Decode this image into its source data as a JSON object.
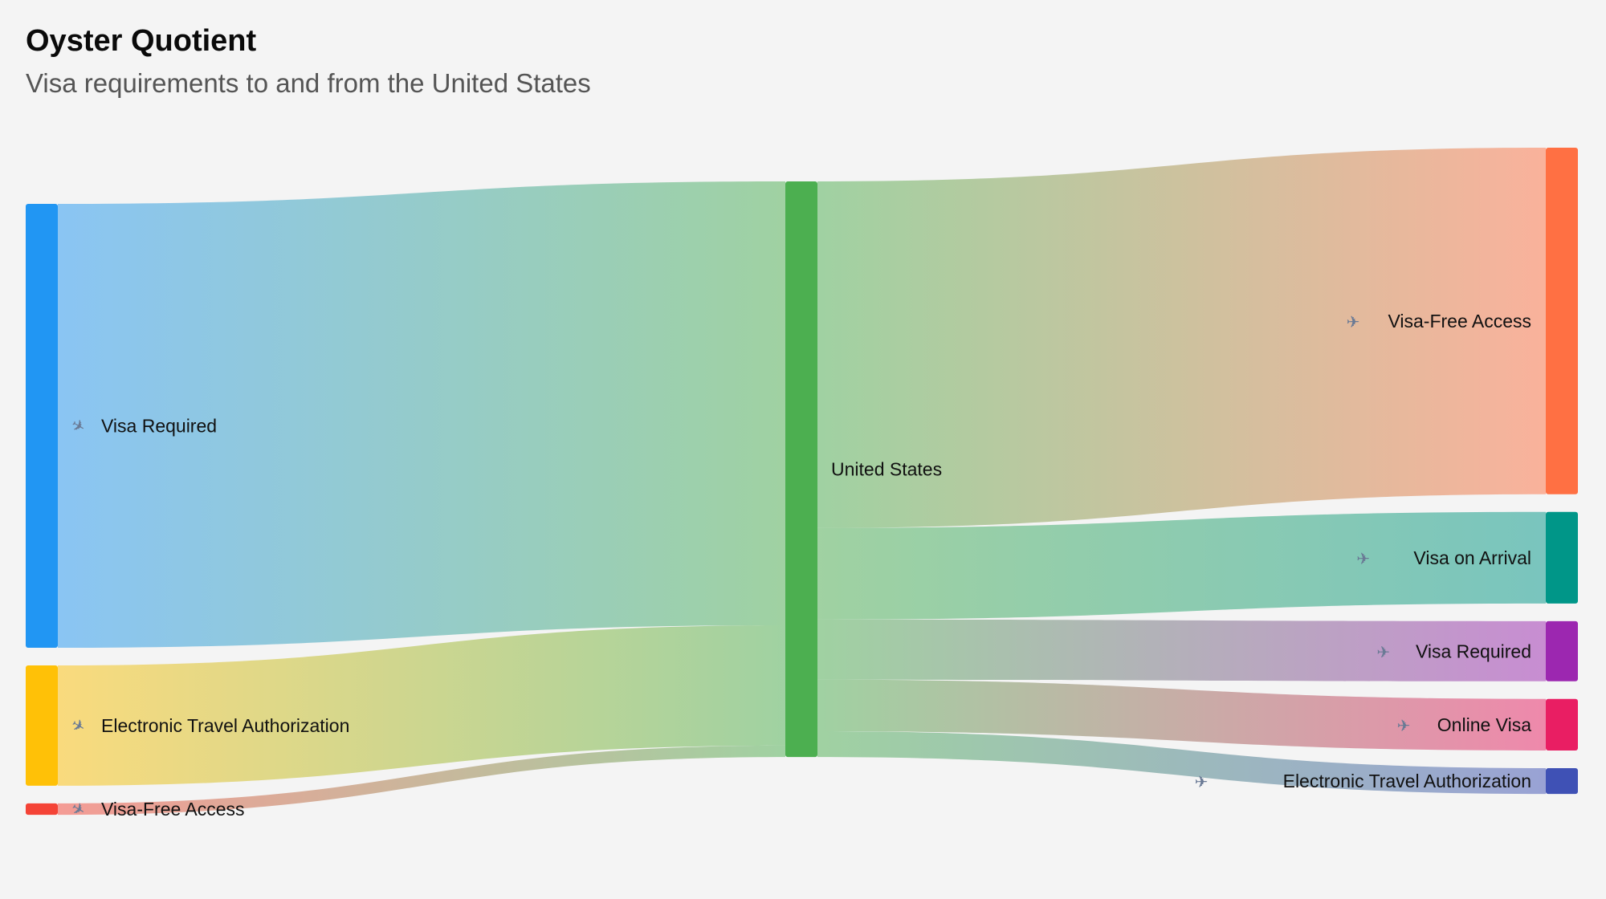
{
  "header": {
    "title": "Oyster Quotient",
    "subtitle": "Visa requirements to and from the United States"
  },
  "chart_data": {
    "type": "sankey",
    "nodes": [
      {
        "id": "in_visa_required",
        "label": "Visa Required",
        "icon": "airplane-arrival-icon",
        "color": "#2196F3",
        "column": "left"
      },
      {
        "id": "in_eta",
        "label": "Electronic Travel Authorization",
        "icon": "airplane-arrival-icon",
        "color": "#FFC107",
        "column": "left"
      },
      {
        "id": "in_visa_free",
        "label": "Visa-Free Access",
        "icon": "airplane-arrival-icon",
        "color": "#F44336",
        "column": "left"
      },
      {
        "id": "united_states",
        "label": "United States",
        "icon": "",
        "color": "#4CAF50",
        "column": "middle"
      },
      {
        "id": "out_visa_free",
        "label": "Visa-Free Access",
        "icon": "airplane-departure-icon",
        "color": "#FF7043",
        "column": "right"
      },
      {
        "id": "out_visa_on_arrival",
        "label": "Visa on Arrival",
        "icon": "airplane-departure-icon",
        "color": "#009688",
        "column": "right"
      },
      {
        "id": "out_visa_required",
        "label": "Visa Required",
        "icon": "airplane-departure-icon",
        "color": "#9C27B0",
        "column": "right"
      },
      {
        "id": "out_online_visa",
        "label": "Online Visa",
        "icon": "airplane-departure-icon",
        "color": "#E91E63",
        "column": "right"
      },
      {
        "id": "out_eta",
        "label": "Electronic Travel Authorization",
        "icon": "airplane-departure-icon",
        "color": "#3F51B5",
        "column": "right"
      }
    ],
    "links": [
      {
        "source": "in_visa_required",
        "target": "united_states",
        "value": 155
      },
      {
        "source": "in_eta",
        "target": "united_states",
        "value": 42
      },
      {
        "source": "in_visa_free",
        "target": "united_states",
        "value": 4
      },
      {
        "source": "united_states",
        "target": "out_visa_free",
        "value": 121
      },
      {
        "source": "united_states",
        "target": "out_visa_on_arrival",
        "value": 32
      },
      {
        "source": "united_states",
        "target": "out_visa_required",
        "value": 21
      },
      {
        "source": "united_states",
        "target": "out_online_visa",
        "value": 18
      },
      {
        "source": "united_states",
        "target": "out_eta",
        "value": 9
      }
    ]
  }
}
